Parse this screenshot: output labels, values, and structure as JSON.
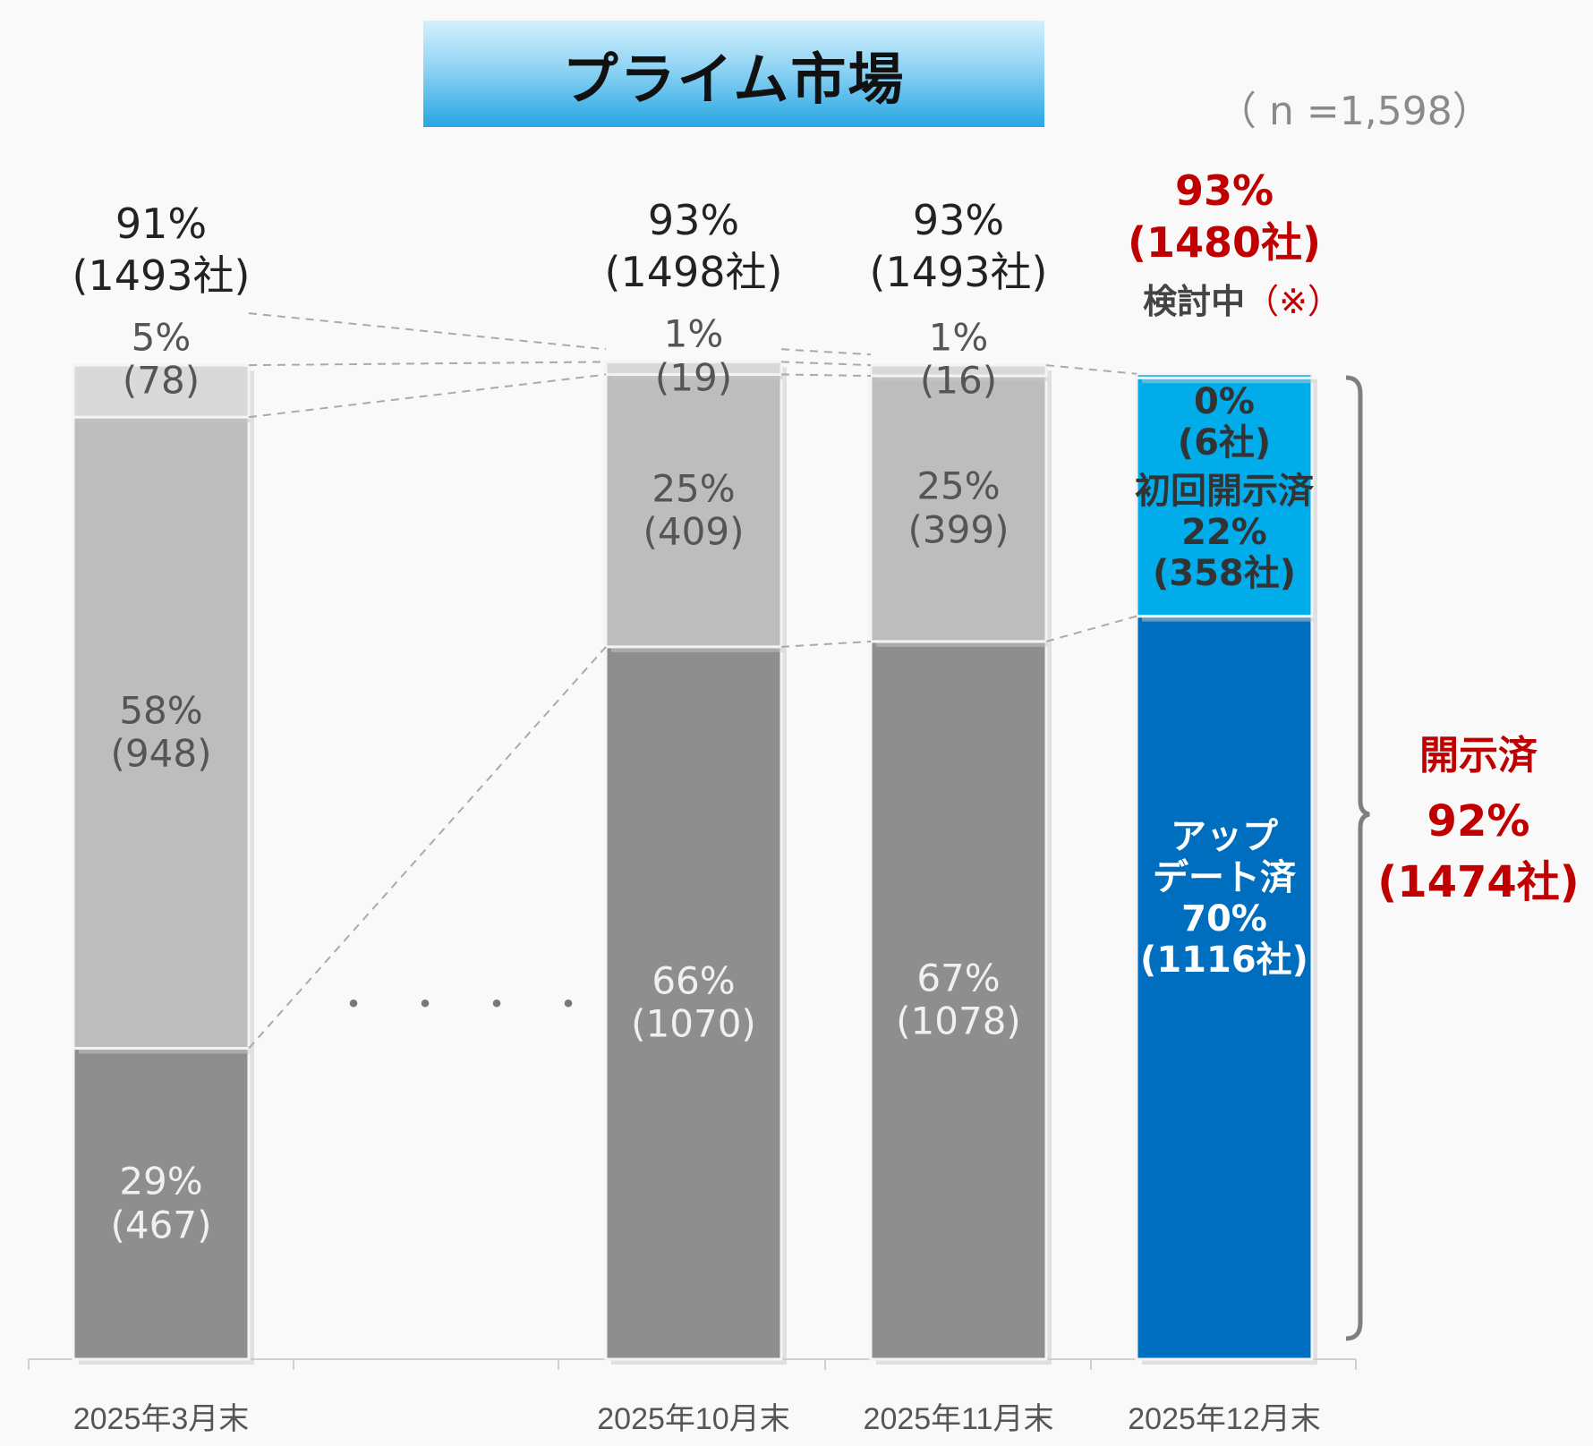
{
  "title": "プライム市場",
  "n_label": "（ n =1,598）",
  "gap_marker": "・・・・",
  "colors": {
    "dark_gray": "#8e8e8e",
    "mid_gray": "#bdbdbd",
    "light_gray": "#d9d9d9",
    "dark_blue": "#006ebf",
    "light_blue": "#00adea",
    "red": "#c00000"
  },
  "brace": {
    "label": "開示済",
    "pct": "92%",
    "count": "(1474社)"
  },
  "chart_data": {
    "type": "bar",
    "stacked": true,
    "total_n": 1598,
    "categories": [
      "2025年3月末",
      "2025年10月末",
      "2025年11月末",
      "2025年12月末"
    ],
    "totals": [
      {
        "pct": "91%",
        "count": "(1493社)",
        "highlight": false
      },
      {
        "pct": "93%",
        "count": "(1498社)",
        "highlight": false
      },
      {
        "pct": "93%",
        "count": "(1493社)",
        "highlight": false
      },
      {
        "pct": "93%",
        "count": "(1480社)",
        "highlight": true
      }
    ],
    "bars": [
      {
        "segments": [
          {
            "value": 467,
            "text": "29%\n(467)",
            "color": "dark_gray"
          },
          {
            "value": 948,
            "text": "58%\n(948)",
            "color": "mid_gray"
          },
          {
            "value": 78,
            "text": "5%\n(78)",
            "color": "light_gray"
          }
        ]
      },
      {
        "segments": [
          {
            "value": 1070,
            "text": "66%\n(1070)",
            "color": "dark_gray"
          },
          {
            "value": 409,
            "text": "25%\n(409)",
            "color": "mid_gray"
          },
          {
            "value": 19,
            "text": "1%\n(19)",
            "color": "light_gray"
          }
        ]
      },
      {
        "segments": [
          {
            "value": 1078,
            "text": "67%\n(1078)",
            "color": "dark_gray"
          },
          {
            "value": 399,
            "text": "25%\n(399)",
            "color": "mid_gray"
          },
          {
            "value": 16,
            "text": "1%\n(16)",
            "color": "light_gray"
          }
        ]
      },
      {
        "segments": [
          {
            "value": 1116,
            "text": "アップ\nデート済\n70%\n(1116社)",
            "color": "dark_blue"
          },
          {
            "value": 358,
            "text": "初回開示済\n22%\n(358社)",
            "color": "light_blue"
          },
          {
            "value": 6,
            "text": "0%\n(6社)",
            "color": "light_blue",
            "header": "検討中",
            "note": "（※）"
          }
        ]
      }
    ]
  }
}
